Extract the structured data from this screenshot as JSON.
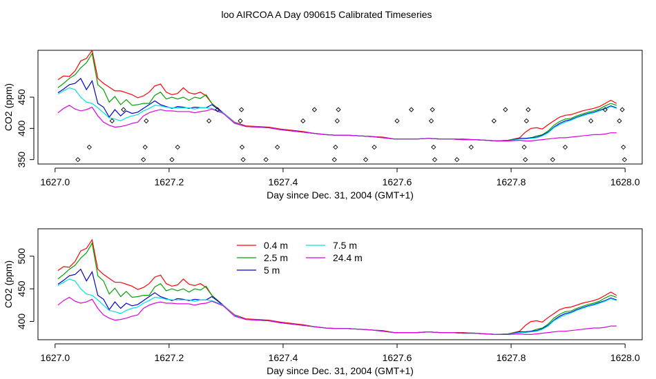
{
  "title": "loo AIRCOA A  Day 090615  Calibrated Timeseries",
  "chart_data": [
    {
      "type": "line",
      "xlabel": "Day since Dec. 31, 2004 (GMT+1)",
      "ylabel": "CO2 (ppm)",
      "xlim": [
        1626.97,
        1628.03
      ],
      "ylim": [
        343,
        525
      ],
      "xticks": [
        1627.0,
        1627.2,
        1627.4,
        1627.6,
        1627.8,
        1628.0
      ],
      "xtick_labels": [
        "1627.0",
        "1627.2",
        "1627.4",
        "1627.6",
        "1627.8",
        "1628.0"
      ],
      "yticks": [
        350,
        400,
        450
      ],
      "ytick_labels": [
        "350",
        "400",
        "450"
      ],
      "x": [
        1627.005,
        1627.015,
        1627.025,
        1627.035,
        1627.045,
        1627.055,
        1627.065,
        1627.075,
        1627.085,
        1627.095,
        1627.105,
        1627.115,
        1627.125,
        1627.135,
        1627.145,
        1627.155,
        1627.165,
        1627.175,
        1627.185,
        1627.195,
        1627.205,
        1627.215,
        1627.225,
        1627.235,
        1627.245,
        1627.255,
        1627.265,
        1627.275,
        1627.295,
        1627.315,
        1627.335,
        1627.355,
        1627.375,
        1627.395,
        1627.415,
        1627.435,
        1627.455,
        1627.475,
        1627.495,
        1627.515,
        1627.535,
        1627.555,
        1627.575,
        1627.595,
        1627.615,
        1627.635,
        1627.655,
        1627.675,
        1627.695,
        1627.715,
        1627.735,
        1627.755,
        1627.775,
        1627.795,
        1627.815,
        1627.825,
        1627.835,
        1627.845,
        1627.855,
        1627.865,
        1627.875,
        1627.885,
        1627.895,
        1627.905,
        1627.915,
        1627.925,
        1627.935,
        1627.945,
        1627.955,
        1627.965,
        1627.975,
        1627.985
      ],
      "series": [
        {
          "name": "0.4 m",
          "color": "#ff0000",
          "values": [
            478,
            484,
            483,
            492,
            508,
            512,
            525,
            480,
            472,
            466,
            460,
            460,
            457,
            454,
            449,
            452,
            458,
            468,
            471,
            458,
            454,
            456,
            465,
            457,
            455,
            458,
            452,
            440,
            425,
            410,
            404,
            403,
            402,
            399,
            397,
            395,
            392,
            390,
            389,
            389,
            388,
            387,
            386,
            383,
            383,
            383,
            384,
            383,
            383,
            383,
            382,
            381,
            380,
            381,
            385,
            394,
            400,
            401,
            399,
            406,
            412,
            418,
            421,
            422,
            425,
            428,
            430,
            432,
            435,
            440,
            445,
            440
          ]
        },
        {
          "name": "2.5 m",
          "color": "#00a000",
          "values": [
            465,
            472,
            480,
            486,
            497,
            505,
            520,
            470,
            462,
            442,
            451,
            438,
            446,
            437,
            438,
            440,
            440,
            453,
            458,
            447,
            450,
            447,
            450,
            445,
            450,
            448,
            454,
            440,
            424,
            409,
            403,
            403,
            401,
            398,
            396,
            394,
            392,
            390,
            389,
            389,
            388,
            387,
            385,
            383,
            383,
            383,
            384,
            383,
            383,
            382,
            382,
            381,
            380,
            381,
            384,
            384,
            385,
            388,
            390,
            396,
            405,
            411,
            415,
            416,
            420,
            423,
            426,
            428,
            431,
            436,
            440,
            437
          ]
        },
        {
          "name": "5 m",
          "color": "#0000cc",
          "values": [
            457,
            463,
            470,
            472,
            480,
            462,
            476,
            440,
            434,
            418,
            430,
            420,
            428,
            424,
            426,
            432,
            438,
            444,
            438,
            435,
            432,
            435,
            434,
            432,
            434,
            433,
            433,
            438,
            425,
            409,
            403,
            402,
            401,
            398,
            396,
            394,
            392,
            390,
            389,
            389,
            388,
            387,
            385,
            383,
            383,
            383,
            384,
            383,
            383,
            382,
            382,
            381,
            380,
            380,
            384,
            384,
            385,
            386,
            389,
            394,
            402,
            408,
            412,
            414,
            418,
            421,
            424,
            426,
            429,
            432,
            436,
            433
          ]
        },
        {
          "name": "7.5 m",
          "color": "#00e0e0",
          "values": [
            455,
            460,
            465,
            462,
            450,
            442,
            440,
            433,
            425,
            417,
            415,
            412,
            417,
            420,
            422,
            428,
            432,
            437,
            436,
            434,
            433,
            433,
            433,
            433,
            431,
            433,
            433,
            432,
            425,
            409,
            403,
            402,
            401,
            398,
            396,
            394,
            392,
            390,
            389,
            389,
            388,
            387,
            385,
            383,
            383,
            383,
            384,
            383,
            383,
            382,
            382,
            381,
            380,
            380,
            383,
            383,
            384,
            385,
            388,
            393,
            401,
            406,
            410,
            413,
            417,
            420,
            423,
            425,
            428,
            431,
            435,
            432
          ]
        },
        {
          "name": "24.4 m",
          "color": "#dd00dd",
          "values": [
            425,
            432,
            437,
            431,
            428,
            430,
            434,
            420,
            410,
            405,
            402,
            403,
            405,
            408,
            410,
            420,
            425,
            428,
            430,
            428,
            428,
            427,
            427,
            427,
            425,
            427,
            428,
            431,
            424,
            408,
            403,
            402,
            401,
            398,
            396,
            394,
            392,
            390,
            389,
            389,
            388,
            387,
            385,
            383,
            383,
            383,
            384,
            383,
            383,
            382,
            382,
            381,
            380,
            380,
            381,
            380,
            380,
            381,
            382,
            383,
            384,
            385,
            385,
            386,
            387,
            388,
            389,
            390,
            390,
            391,
            393,
            393
          ]
        }
      ],
      "markers": {
        "symbol": "diamond",
        "x": [
          1627.04,
          1627.06,
          1627.1,
          1627.12,
          1627.155,
          1627.158,
          1627.16,
          1627.205,
          1627.215,
          1627.27,
          1627.285,
          1627.325,
          1627.327,
          1627.328,
          1627.33,
          1627.37,
          1627.39,
          1627.435,
          1627.455,
          1627.49,
          1627.492,
          1627.495,
          1627.497,
          1627.545,
          1627.56,
          1627.6,
          1627.625,
          1627.66,
          1627.662,
          1627.664,
          1627.666,
          1627.705,
          1627.73,
          1627.77,
          1627.79,
          1627.823,
          1627.825,
          1627.827,
          1627.83,
          1627.873,
          1627.895,
          1627.94,
          1627.965,
          1627.99,
          1627.995,
          1627.997,
          1627.999
        ],
        "y": [
          350,
          370,
          412,
          430,
          350,
          370,
          412,
          350,
          370,
          412,
          430,
          412,
          430,
          370,
          350,
          350,
          370,
          412,
          430,
          350,
          370,
          412,
          430,
          350,
          370,
          412,
          430,
          412,
          430,
          370,
          350,
          350,
          370,
          412,
          430,
          370,
          350,
          412,
          430,
          350,
          370,
          412,
          430,
          412,
          430,
          370,
          350
        ]
      }
    },
    {
      "type": "line",
      "xlabel": "Day since Dec. 31, 2004 (GMT+1)",
      "ylabel": "CO2 (ppm)",
      "xlim": [
        1626.97,
        1628.03
      ],
      "ylim": [
        372,
        542
      ],
      "xticks": [
        1627.0,
        1627.2,
        1627.4,
        1627.6,
        1627.8,
        1628.0
      ],
      "xtick_labels": [
        "1627.0",
        "1627.2",
        "1627.4",
        "1627.6",
        "1627.8",
        "1628.0"
      ],
      "yticks": [
        400,
        450,
        500
      ],
      "ytick_labels": [
        "400",
        "450",
        "500"
      ],
      "legend": {
        "placement": "top-center",
        "entries": [
          {
            "label": "0.4 m",
            "color": "#ff0000"
          },
          {
            "label": "2.5 m",
            "color": "#00a000"
          },
          {
            "label": "5 m",
            "color": "#0000cc"
          },
          {
            "label": "7.5 m",
            "color": "#00e0e0"
          },
          {
            "label": "24.4 m",
            "color": "#dd00dd"
          }
        ]
      }
    }
  ]
}
